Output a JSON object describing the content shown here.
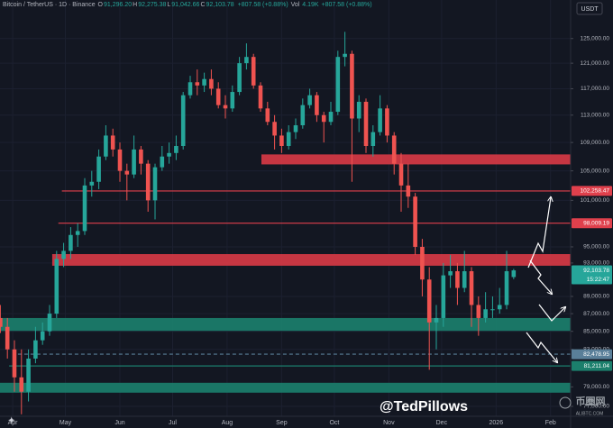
{
  "chart_data": {
    "type": "candlestick",
    "header": {
      "symbol": "Bitcoin / TetherUS · 1D · Binance",
      "ohlc": [
        {
          "key": "O",
          "text": "91,296.20"
        },
        {
          "key": "H",
          "text": "92,275.38"
        },
        {
          "key": "L",
          "text": "91,042.66"
        },
        {
          "key": "C",
          "text": "92,103.78"
        }
      ],
      "change": "+807.58 (+0.88%)",
      "vol_key": "Vol",
      "vol_value": "4.19K",
      "vol_change": "+807.58 (+0.88%)"
    },
    "currency": "USDT",
    "watermark": "@TedPillows",
    "logo": "币圈网",
    "logo_sub": "ALIBTC.COM",
    "log_scale": true,
    "grid": true,
    "up_color": "#26a69a",
    "down_color": "#ef5350",
    "xlim": [
      -7.2,
      317.4
    ],
    "ylim": [
      76000,
      131500
    ],
    "xticks": [
      {
        "value": 0,
        "label": "Apr"
      },
      {
        "value": 30,
        "label": "May"
      },
      {
        "value": 61,
        "label": "Jun"
      },
      {
        "value": 91,
        "label": "Jul"
      },
      {
        "value": 122,
        "label": "Aug"
      },
      {
        "value": 153,
        "label": "Sep"
      },
      {
        "value": 183,
        "label": "Oct"
      },
      {
        "value": 214,
        "label": "Nov"
      },
      {
        "value": 244,
        "label": "Dec"
      },
      {
        "value": 275,
        "label": "2026"
      },
      {
        "value": 306,
        "label": "Feb"
      }
    ],
    "yticks": [
      {
        "value": 125000,
        "label": "125,000.00"
      },
      {
        "value": 121000,
        "label": "121,000.00"
      },
      {
        "value": 117000,
        "label": "117,000.00"
      },
      {
        "value": 113000,
        "label": "113,000.00"
      },
      {
        "value": 109000,
        "label": "109,000.00"
      },
      {
        "value": 105000,
        "label": "105,000.00"
      },
      {
        "value": 101000,
        "label": "101,000.00"
      },
      {
        "value": 95000,
        "label": "95,000.00"
      },
      {
        "value": 93000,
        "label": "93,000.00"
      },
      {
        "value": 89000,
        "label": "89,000.00"
      },
      {
        "value": 87000,
        "label": "87,000.00"
      },
      {
        "value": 85000,
        "label": "85,000.00"
      },
      {
        "value": 83000,
        "label": "83,000.00"
      },
      {
        "value": 79000,
        "label": "79,000.00"
      },
      {
        "value": 77000,
        "label": "77,000.00"
      }
    ],
    "zones": [
      {
        "from": 141.5,
        "low": 105900,
        "high": 107300,
        "color": "#d63a45"
      },
      {
        "from": 22.5,
        "low": 92670,
        "high": 94100,
        "color": "#d63a45"
      },
      {
        "from": -7.2,
        "low": 85050,
        "high": 86500,
        "color": "#1b7f6c"
      },
      {
        "from": -7.2,
        "low": 78400,
        "high": 79430,
        "color": "#1b7f6c"
      }
    ],
    "levels": [
      {
        "from": 28,
        "price": {
          "value": 102258.47,
          "label": "102,258.47"
        },
        "color": "#e0404c",
        "dashed": false
      },
      {
        "from": 26,
        "price": {
          "value": 98009.19,
          "label": "98,009.19"
        },
        "color": "#e0404c",
        "dashed": false
      },
      {
        "from": 3,
        "price": {
          "value": 82478.95,
          "label": "82,478.95"
        },
        "color": "#5a7f99",
        "dashed": true
      },
      {
        "from": -2,
        "price": {
          "value": 81211.04,
          "label": "81,211.04"
        },
        "color": "#1b7f6c",
        "dashed": false
      }
    ],
    "last_price": {
      "price": {
        "value": 92103.78,
        "label": "92,103.78"
      },
      "countdown": "15:22:47"
    },
    "candles": {
      "x": [
        -7,
        -3,
        1,
        5,
        9,
        13,
        17,
        21,
        25,
        29,
        33,
        37,
        41,
        45,
        49,
        53,
        57,
        61,
        65,
        69,
        73,
        77,
        81,
        85,
        89,
        93,
        97,
        101,
        105,
        109,
        113,
        117,
        121,
        125,
        129,
        133,
        137,
        141,
        145,
        149,
        153,
        157,
        161,
        165,
        169,
        173,
        177,
        181,
        185,
        189,
        193,
        197,
        201,
        205,
        209,
        213,
        217,
        221,
        225,
        229,
        233,
        237,
        241,
        245,
        249,
        253,
        257,
        261,
        265,
        269,
        273,
        277,
        281,
        285
      ],
      "open": [
        86500,
        85500,
        83000,
        80000,
        78500,
        82000,
        84000,
        85000,
        87000,
        93500,
        94500,
        96500,
        97000,
        103000,
        103500,
        107000,
        110000,
        108000,
        105000,
        104500,
        108000,
        106000,
        101000,
        105500,
        107000,
        107500,
        108500,
        116000,
        118000,
        117500,
        118500,
        117000,
        114500,
        114000,
        116500,
        121000,
        122000,
        117500,
        114000,
        112000,
        110000,
        108500,
        110500,
        111500,
        114500,
        116000,
        113000,
        112000,
        113500,
        122000,
        122500,
        112500,
        115000,
        108500,
        110500,
        114000,
        110000,
        106000,
        103000,
        101500,
        95000,
        91000,
        86000,
        86500,
        91500,
        92000,
        90000,
        92000,
        88000,
        86500,
        87500,
        87500,
        88000,
        91296.2
      ],
      "high": [
        88000,
        86500,
        84000,
        83000,
        83000,
        85500,
        86000,
        88000,
        94500,
        95500,
        97500,
        98000,
        104000,
        105000,
        108000,
        111500,
        111000,
        109000,
        106000,
        110000,
        108500,
        106500,
        106000,
        108500,
        109000,
        110000,
        116500,
        119000,
        120000,
        119500,
        120000,
        118000,
        116000,
        117500,
        122000,
        124200,
        122500,
        118000,
        115000,
        113000,
        111000,
        111500,
        112500,
        115500,
        117000,
        116500,
        113500,
        115000,
        123000,
        126100,
        123000,
        116000,
        115500,
        111500,
        116000,
        114500,
        110500,
        107500,
        106000,
        102000,
        96000,
        92500,
        88000,
        93000,
        94000,
        93000,
        94500,
        92500,
        89000,
        89500,
        89000,
        90000,
        94500,
        92275.38
      ],
      "low": [
        84800,
        82000,
        78500,
        76200,
        77500,
        81500,
        83500,
        84500,
        86500,
        92500,
        93500,
        95000,
        96500,
        101500,
        102500,
        106500,
        107000,
        103500,
        101000,
        104000,
        104500,
        99500,
        98500,
        105000,
        106000,
        106500,
        108000,
        115500,
        116000,
        116500,
        116000,
        114000,
        112500,
        113500,
        116000,
        120000,
        117000,
        113500,
        111500,
        108000,
        107500,
        108000,
        109500,
        111000,
        114000,
        112000,
        109000,
        111500,
        113000,
        120500,
        103500,
        110500,
        107500,
        107000,
        110000,
        109000,
        104500,
        99500,
        100000,
        94000,
        89000,
        80800,
        83000,
        85500,
        90000,
        88000,
        89500,
        85500,
        84500,
        86000,
        86500,
        87000,
        87500,
        91042.66
      ],
      "close": [
        85500,
        83000,
        80000,
        78500,
        82000,
        84000,
        85000,
        87000,
        93500,
        94500,
        96500,
        97000,
        103000,
        103500,
        107000,
        110000,
        108000,
        105000,
        104500,
        108000,
        106000,
        101000,
        105500,
        107000,
        107500,
        108500,
        116000,
        118000,
        117500,
        118500,
        117000,
        114500,
        114000,
        116500,
        121000,
        122000,
        117500,
        114000,
        112000,
        110000,
        108500,
        110500,
        111500,
        114500,
        116000,
        113000,
        112000,
        113500,
        122000,
        122500,
        112500,
        115000,
        108500,
        110500,
        114000,
        110000,
        106000,
        103000,
        101500,
        95000,
        91000,
        86000,
        86500,
        91500,
        92000,
        90000,
        92000,
        88000,
        86500,
        87500,
        87500,
        88000,
        92000,
        92103.78
      ]
    }
  }
}
